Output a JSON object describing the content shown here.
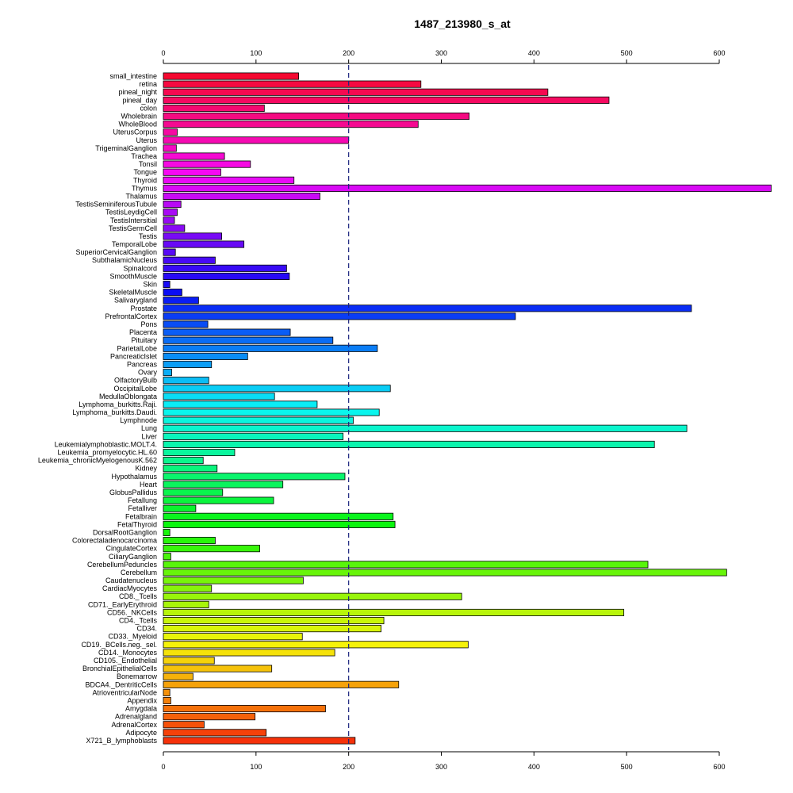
{
  "chart_data": {
    "type": "bar",
    "orientation": "horizontal",
    "title": "1487_213980_s_at",
    "xlim": [
      0,
      660
    ],
    "x_ticks": [
      0,
      100,
      200,
      300,
      400,
      500,
      600
    ],
    "reference_line": 200,
    "grid": false,
    "categories": [
      "small_intestine",
      "retina",
      "pineal_night",
      "pineal_day",
      "colon",
      "Wholebrain",
      "WholeBlood",
      "UterusCorpus",
      "Uterus",
      "TrigeminalGanglion",
      "Trachea",
      "Tonsil",
      "Tongue",
      "Thyroid",
      "Thymus",
      "Thalamus",
      "TestisSeminiferousTubule",
      "TestisLeydigCell",
      "TestisIntersitial",
      "TestisGermCell",
      "Testis",
      "TemporalLobe",
      "SuperiorCervicalGanglion",
      "SubthalamicNucleus",
      "Spinalcord",
      "SmoothMuscle",
      "Skin",
      "SkeletalMuscle",
      "Salivarygland",
      "Prostate",
      "PrefrontalCortex",
      "Pons",
      "Placenta",
      "Pituitary",
      "ParietalLobe",
      "PancreaticIslet",
      "Pancreas",
      "Ovary",
      "OlfactoryBulb",
      "OccipitalLobe",
      "MedullaOblongata",
      "Lymphoma_burkitts.Raji.",
      "Lymphoma_burkitts.Daudi.",
      "Lymphnode",
      "Lung",
      "Liver",
      "Leukemialymphoblastic.MOLT.4.",
      "Leukemia_promyelocytic.HL.60",
      "Leukemia_chronicMyelogenousK.562",
      "Kidney",
      "Hypothalamus",
      "Heart",
      "GlobusPallidus",
      "Fetallung",
      "Fetalliver",
      "Fetalbrain",
      "FetalThyroid",
      "DorsalRootGanglion",
      "Colorectaladenocarcinoma",
      "CingulateCortex",
      "CiliaryGanglion",
      "CerebellumPeduncles",
      "Cerebellum",
      "Caudatenucleus",
      "CardiacMyocytes",
      "CD8._Tcells",
      "CD71._EarlyErythroid",
      "CD56._NKCells",
      "CD4._Tcells",
      "CD34.",
      "CD33._Myeloid",
      "CD19._BCells.neg._sel.",
      "CD14._Monocytes",
      "CD105._Endothelial",
      "BronchialEpithelialCells",
      "Bonemarrow",
      "BDCA4._DentriticCells",
      "AtrioventricularNode",
      "Appendix",
      "Amygdala",
      "Adrenalgland",
      "AdrenalCortex",
      "Adipocyte",
      "X721_B_lymphoblasts"
    ],
    "values": [
      146,
      278,
      415,
      481,
      109,
      330,
      275,
      15,
      200,
      14,
      66,
      94,
      62,
      141,
      656,
      169,
      19,
      15,
      12,
      23,
      63,
      87,
      13,
      56,
      133,
      136,
      7,
      20,
      38,
      570,
      380,
      48,
      137,
      183,
      231,
      91,
      52,
      9,
      49,
      245,
      120,
      166,
      233,
      205,
      565,
      194,
      530,
      77,
      43,
      58,
      196,
      129,
      64,
      119,
      35,
      248,
      250,
      7,
      56,
      104,
      8,
      523,
      608,
      151,
      52,
      322,
      49,
      497,
      238,
      235,
      150,
      329,
      185,
      55,
      117,
      32,
      254,
      7,
      8,
      175,
      99,
      44,
      111,
      207
    ]
  }
}
